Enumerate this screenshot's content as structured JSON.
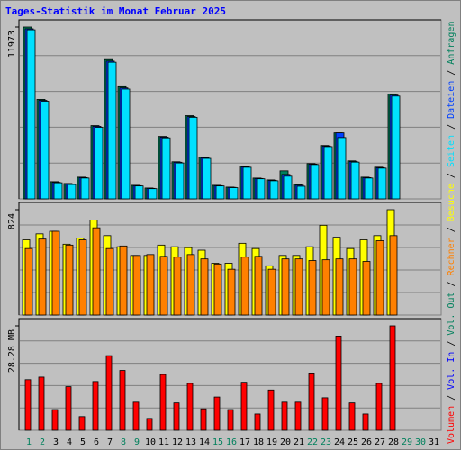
{
  "title": "Tages-Statistik im Monat Februar 2025",
  "legend_separator": "/",
  "chart_data": [
    {
      "type": "bar",
      "ylim": [
        0,
        11973
      ],
      "yticks": [
        11973
      ],
      "series": [
        {
          "name": "Anfragen",
          "color": "#00805c",
          "values": [
            11973,
            6932,
            1197,
            1071,
            1512,
            5104,
            9704,
            7814,
            945,
            756,
            4348,
            2584,
            5797,
            2899,
            945,
            819,
            2269,
            1449,
            1323,
            1953,
            1008,
            2458,
            3718,
            4600,
            2647,
            1512,
            2206,
            7310,
            null,
            null,
            null
          ]
        },
        {
          "name": "Dateien",
          "color": "#0040ff",
          "values": [
            11850,
            6860,
            1150,
            1030,
            1480,
            5050,
            9600,
            7730,
            920,
            730,
            4300,
            2550,
            5730,
            2860,
            920,
            800,
            2230,
            1420,
            1290,
            1700,
            950,
            2420,
            3680,
            4600,
            2600,
            1480,
            2170,
            7230,
            null,
            null,
            null
          ]
        },
        {
          "name": "Seiten",
          "color": "#00e0ff",
          "values": [
            11780,
            6800,
            1120,
            1000,
            1450,
            4980,
            9520,
            7650,
            900,
            710,
            4250,
            2500,
            5680,
            2820,
            900,
            780,
            2200,
            1400,
            1260,
            1580,
            880,
            2390,
            3640,
            4270,
            2560,
            1450,
            2140,
            7160,
            null,
            null,
            null
          ]
        }
      ]
    },
    {
      "type": "bar",
      "ylim": [
        0,
        824
      ],
      "yticks": [
        824
      ],
      "series": [
        {
          "name": "Besuche",
          "color": "#ffff00",
          "values": [
            588,
            635,
            655,
            554,
            601,
            743,
            621,
            534,
            466,
            466,
            547,
            534,
            527,
            507,
            405,
            405,
            561,
            520,
            385,
            466,
            466,
            534,
            702,
            608,
            520,
            588,
            621,
            824,
            null,
            null,
            null
          ]
        },
        {
          "name": "Rechner",
          "color": "#ff8000",
          "values": [
            520,
            594,
            655,
            547,
            588,
            682,
            520,
            540,
            466,
            473,
            459,
            453,
            473,
            439,
            399,
            358,
            453,
            459,
            358,
            439,
            439,
            426,
            432,
            439,
            439,
            419,
            581,
            621,
            null,
            null,
            null
          ]
        }
      ]
    },
    {
      "type": "bar",
      "ylim": [
        0,
        28.28
      ],
      "yticks": [
        {
          "value": 28.28,
          "label": "28.28 MB"
        }
      ],
      "categories": [
        "1",
        "2",
        "3",
        "4",
        "5",
        "6",
        "7",
        "8",
        "9",
        "10",
        "11",
        "12",
        "13",
        "14",
        "15",
        "16",
        "17",
        "18",
        "19",
        "20",
        "21",
        "22",
        "23",
        "24",
        "25",
        "26",
        "27",
        "28",
        "29",
        "30",
        "31"
      ],
      "category_colors": [
        "#00805c",
        "#00805c",
        "#000000",
        "#000000",
        "#000000",
        "#000000",
        "#000000",
        "#00805c",
        "#00805c",
        "#000000",
        "#000000",
        "#000000",
        "#000000",
        "#000000",
        "#00805c",
        "#00805c",
        "#000000",
        "#000000",
        "#000000",
        "#000000",
        "#000000",
        "#00805c",
        "#00805c",
        "#000000",
        "#000000",
        "#000000",
        "#000000",
        "#000000",
        "#00805c",
        "#00805c",
        "#000000"
      ],
      "series": [
        {
          "name": "Volumen",
          "color": "#ff0000",
          "values": [
            13.7,
            14.4,
            5.6,
            11.8,
            3.7,
            13.2,
            20.2,
            16.2,
            7.6,
            3.2,
            15.1,
            7.4,
            12.7,
            5.8,
            9.0,
            5.6,
            13.0,
            4.4,
            10.9,
            7.6,
            7.6,
            15.5,
            8.8,
            25.5,
            7.4,
            4.4,
            12.7,
            28.28,
            null,
            null,
            null
          ]
        }
      ],
      "legend_extra": [
        {
          "name": "Vol. In",
          "color": "#0000ff"
        },
        {
          "name": "Vol. Out",
          "color": "#00805c"
        }
      ]
    }
  ]
}
